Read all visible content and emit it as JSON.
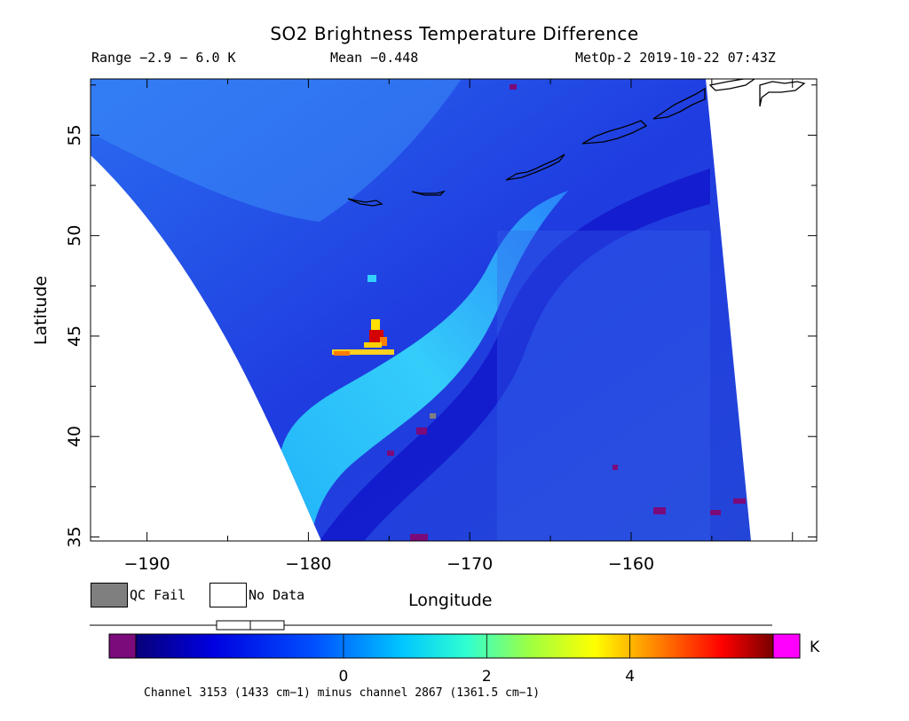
{
  "header": {
    "title": "SO2 Brightness Temperature Difference",
    "range": "Range −2.9 − 6.0 K",
    "mean": "Mean −0.448",
    "satellite_time": "MetOp-2 2019-10-22 07:43Z"
  },
  "axes": {
    "x_label": "Longitude",
    "y_label": "Latitude",
    "x_ticks": [
      -190,
      -180,
      -170,
      -160
    ],
    "x_tick_labels": [
      "−190",
      "−180",
      "−170",
      "−160"
    ],
    "y_ticks": [
      35,
      40,
      45,
      50,
      55
    ],
    "y_tick_labels": [
      "35",
      "40",
      "45",
      "50",
      "55"
    ],
    "x_range": [
      -193.5,
      -148.5
    ],
    "y_range": [
      34.8,
      57.8
    ]
  },
  "legend": {
    "qc_fail": "QC Fail",
    "no_data": "No Data",
    "qc_fail_color": "#7f7f7f",
    "no_data_color": "#ffffff"
  },
  "colorbar": {
    "unit": "K",
    "min": -2.9,
    "max": 6.0,
    "tick_values": [
      0,
      2,
      4
    ],
    "tick_labels": [
      "0",
      "2",
      "4"
    ],
    "under_color": "#7b0a7b",
    "over_color": "#ff00ff"
  },
  "caption": "Channel 3153 (1433 cm−1) minus channel 2867 (1361.5 cm−1)",
  "colors": {
    "background_field": "#1a3cdc",
    "plume": "#33d0ff",
    "hotspot": "#d40000"
  }
}
